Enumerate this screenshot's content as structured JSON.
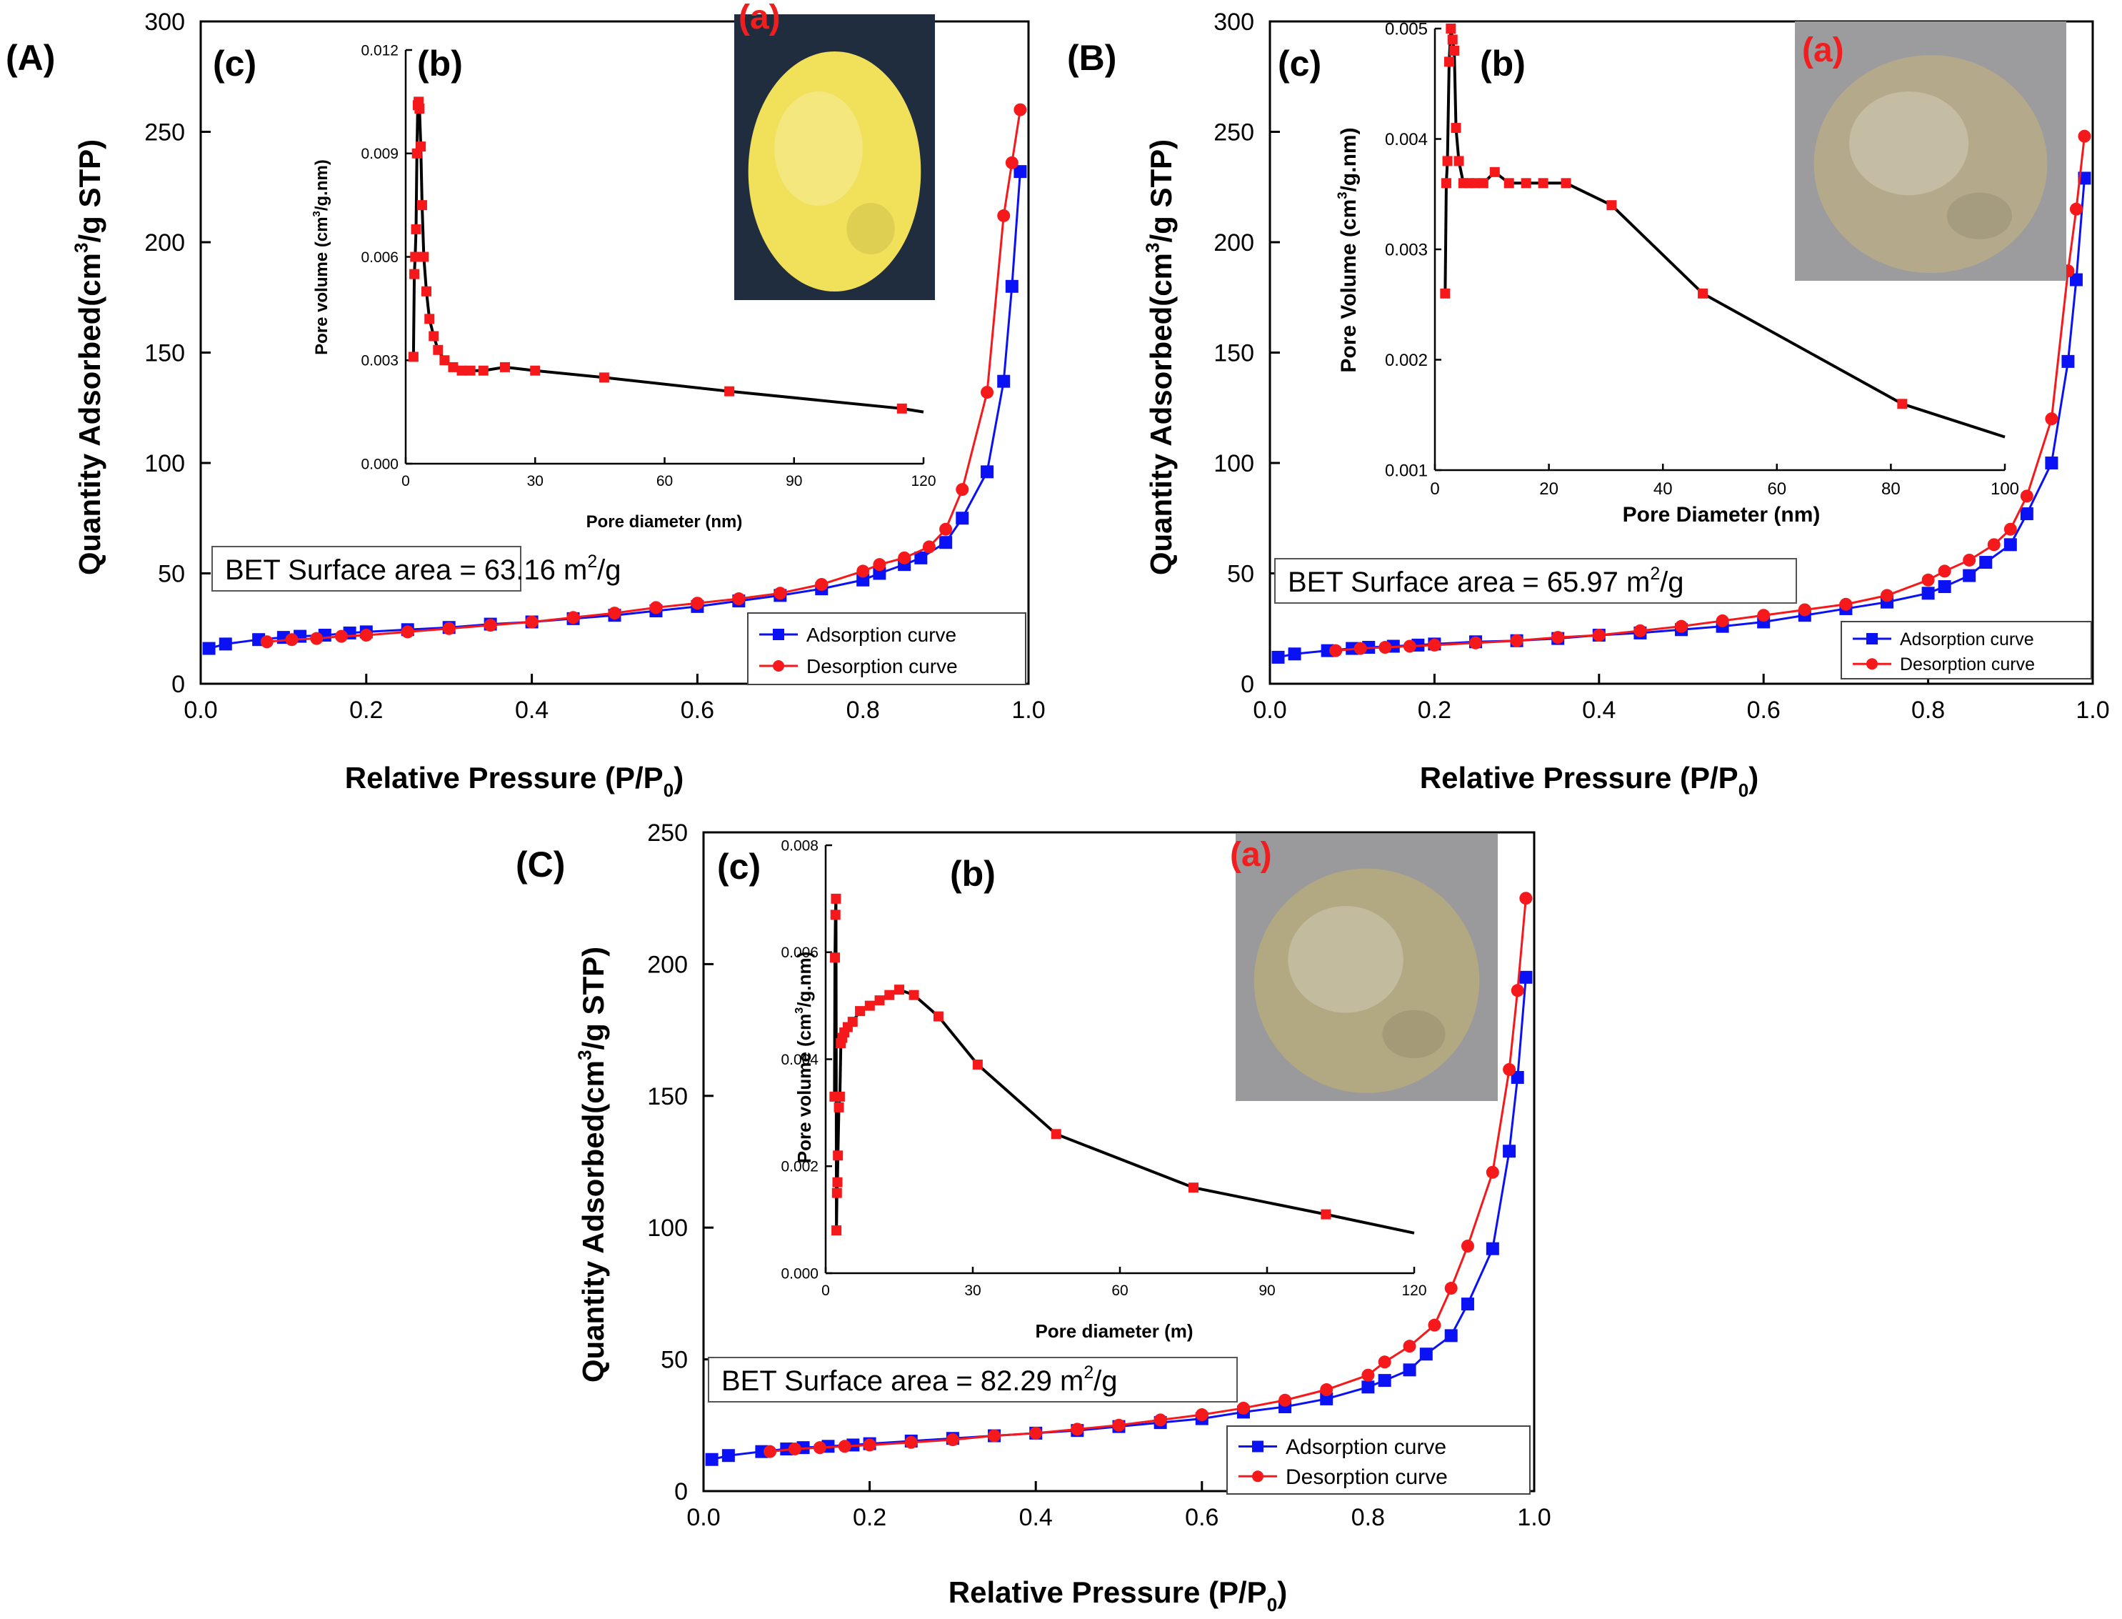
{
  "figure": {
    "panels": [
      {
        "id": "A",
        "tag": "(A)",
        "tag_c": "(c)",
        "tag_b": "(b)",
        "tag_a": "(a)",
        "photo_color": "#F1E05A",
        "photo_bg": "#1F2D3E",
        "photo_desc": "yellow powder"
      },
      {
        "id": "B",
        "tag": "(B)",
        "tag_c": "(c)",
        "tag_b": "(b)",
        "tag_a": "(a)",
        "photo_color": "#B4A98A",
        "photo_bg": "#9C9C9E",
        "photo_desc": "khaki powder"
      },
      {
        "id": "C",
        "tag": "(C)",
        "tag_c": "(c)",
        "tag_b": "(b)",
        "tag_a": "(a)",
        "photo_color": "#B2A882",
        "photo_bg": "#9A9A9C",
        "photo_desc": "khaki powder"
      }
    ]
  },
  "chart_data": [
    {
      "panel": "A",
      "type": "line",
      "xlabel": "Relative Pressure (P/P0)",
      "ylabel": "Quantity Adsorbed(cm3/g STP)",
      "xlim": [
        0,
        1.0
      ],
      "ylim": [
        0,
        300
      ],
      "xticks": [
        "0.0",
        "0.2",
        "0.4",
        "0.6",
        "0.8",
        "1.0"
      ],
      "yticks": [
        "0",
        "50",
        "100",
        "150",
        "200",
        "250",
        "300"
      ],
      "annotation": {
        "text_pre": "BET Surface area = 63.16 m",
        "sup": "2",
        "text_post": "/g"
      },
      "legend": {
        "position": "bottom-right",
        "entries": [
          "Adsorption curve",
          "Desorption curve"
        ]
      },
      "series": [
        {
          "name": "Adsorption curve",
          "color": "#0B11F5",
          "marker": "square",
          "x": [
            0.01,
            0.03,
            0.07,
            0.1,
            0.12,
            0.15,
            0.18,
            0.2,
            0.25,
            0.3,
            0.35,
            0.4,
            0.45,
            0.5,
            0.55,
            0.6,
            0.65,
            0.7,
            0.75,
            0.8,
            0.82,
            0.85,
            0.87,
            0.9,
            0.92,
            0.95,
            0.97,
            0.98,
            0.99
          ],
          "y": [
            16,
            18,
            20,
            21,
            21.5,
            22,
            23,
            23.5,
            24.5,
            25.5,
            27,
            28,
            29.5,
            31,
            33,
            35,
            37.5,
            40,
            43,
            47,
            50,
            54,
            57,
            64,
            75,
            96,
            137,
            180,
            232
          ]
        },
        {
          "name": "Desorption curve",
          "color": "#F5191B",
          "marker": "circle",
          "x": [
            0.08,
            0.11,
            0.14,
            0.17,
            0.2,
            0.25,
            0.3,
            0.35,
            0.4,
            0.45,
            0.5,
            0.55,
            0.6,
            0.65,
            0.7,
            0.75,
            0.8,
            0.82,
            0.85,
            0.88,
            0.9,
            0.92,
            0.95,
            0.97,
            0.98,
            0.99
          ],
          "y": [
            19,
            20,
            20.5,
            21.5,
            22,
            23.5,
            25,
            26.5,
            28,
            30,
            32,
            34.5,
            36.5,
            38.5,
            41,
            45,
            51,
            54,
            57,
            62,
            70,
            88,
            132,
            212,
            236,
            260
          ]
        }
      ],
      "inset": {
        "type": "line",
        "xlabel": "Pore diameter (nm)",
        "ylabel": "Pore volume (cm3/g.nm)",
        "xlim": [
          0,
          120
        ],
        "ylim": [
          0,
          0.012
        ],
        "xticks": [
          "0",
          "30",
          "60",
          "90",
          "120"
        ],
        "yticks": [
          "0.000",
          "0.003",
          "0.006",
          "0.009",
          "0.012"
        ],
        "series": [
          {
            "name": "Pore size distribution",
            "color": "#000000",
            "marker_color": "#F5191B",
            "marker": "square",
            "x": [
              1.8,
              2.0,
              2.2,
              2.4,
              2.6,
              2.8,
              3.0,
              3.2,
              3.5,
              3.8,
              4.2,
              4.8,
              5.5,
              6.5,
              7.5,
              9,
              11,
              13,
              15,
              18,
              23,
              30,
              46,
              75,
              115,
              120
            ],
            "y": [
              0.0031,
              0.0055,
              0.006,
              0.0068,
              0.009,
              0.0104,
              0.0105,
              0.0103,
              0.0092,
              0.0075,
              0.006,
              0.005,
              0.0042,
              0.0037,
              0.0033,
              0.003,
              0.0028,
              0.0027,
              0.0027,
              0.0027,
              0.0028,
              0.0027,
              0.0025,
              0.0021,
              0.0016,
              0.0015
            ]
          }
        ]
      }
    },
    {
      "panel": "B",
      "type": "line",
      "xlabel": "Relative Pressure (P/P0)",
      "ylabel": "Quantity Adsorbed(cm3/g STP)",
      "xlim": [
        0,
        1.0
      ],
      "ylim": [
        0,
        300
      ],
      "xticks": [
        "0.0",
        "0.2",
        "0.4",
        "0.6",
        "0.8",
        "1.0"
      ],
      "yticks": [
        "0",
        "50",
        "100",
        "150",
        "200",
        "250",
        "300"
      ],
      "annotation": {
        "text_pre": "BET Surface area = 65.97 m",
        "sup": "2",
        "text_post": "/g"
      },
      "legend": {
        "position": "bottom-right",
        "entries": [
          "Adsorption curve",
          "Desorption curve"
        ]
      },
      "series": [
        {
          "name": "Adsorption curve",
          "color": "#0B11F5",
          "marker": "square",
          "x": [
            0.01,
            0.03,
            0.07,
            0.1,
            0.12,
            0.15,
            0.18,
            0.2,
            0.25,
            0.3,
            0.35,
            0.4,
            0.45,
            0.5,
            0.55,
            0.6,
            0.65,
            0.7,
            0.75,
            0.8,
            0.82,
            0.85,
            0.87,
            0.9,
            0.92,
            0.95,
            0.97,
            0.98,
            0.99
          ],
          "y": [
            12,
            13.5,
            15,
            16,
            16.5,
            17,
            17.5,
            18,
            19,
            19.5,
            20.5,
            22,
            23,
            24.5,
            26,
            28,
            31,
            34,
            37,
            41,
            44,
            49,
            55,
            63,
            77,
            100,
            146,
            183,
            229
          ]
        },
        {
          "name": "Desorption curve",
          "color": "#F5191B",
          "marker": "circle",
          "x": [
            0.08,
            0.11,
            0.14,
            0.17,
            0.2,
            0.25,
            0.3,
            0.35,
            0.4,
            0.45,
            0.5,
            0.55,
            0.6,
            0.65,
            0.7,
            0.75,
            0.8,
            0.82,
            0.85,
            0.88,
            0.9,
            0.92,
            0.95,
            0.97,
            0.98,
            0.99
          ],
          "y": [
            15,
            16,
            16.5,
            17,
            17.5,
            18.5,
            19.5,
            21,
            22,
            24,
            26,
            28.5,
            31,
            33.5,
            36,
            40,
            47,
            51,
            56,
            63,
            70,
            85,
            120,
            187,
            215,
            248
          ]
        }
      ],
      "inset": {
        "type": "line",
        "xlabel": "Pore Diameter (nm)",
        "ylabel": "Pore Volume (cm3/g.nm)",
        "xlim": [
          0,
          100
        ],
        "ylim": [
          0.001,
          0.005
        ],
        "xticks": [
          "0",
          "20",
          "40",
          "60",
          "80",
          "100"
        ],
        "yticks": [
          "0.001",
          "0.002",
          "0.003",
          "0.004",
          "0.005"
        ],
        "series": [
          {
            "name": "Pore size distribution",
            "color": "#000000",
            "marker_color": "#F5191B",
            "marker": "square",
            "x": [
              1.8,
              2.0,
              2.2,
              2.5,
              2.8,
              3.1,
              3.4,
              3.7,
              4.2,
              5,
              6,
              7,
              8.5,
              10.5,
              13,
              16,
              19,
              23,
              31,
              47,
              82,
              100
            ],
            "y": [
              0.0026,
              0.0036,
              0.0038,
              0.0047,
              0.005,
              0.0049,
              0.0048,
              0.0041,
              0.0038,
              0.0036,
              0.0036,
              0.0036,
              0.0036,
              0.0037,
              0.0036,
              0.0036,
              0.0036,
              0.0036,
              0.0034,
              0.0026,
              0.0016,
              0.0013
            ]
          }
        ]
      }
    },
    {
      "panel": "C",
      "type": "line",
      "xlabel": "Relative Pressure (P/P0)",
      "ylabel": "Quantity Adsorbed(cm3/g STP)",
      "xlim": [
        0,
        1.0
      ],
      "ylim": [
        0,
        250
      ],
      "xticks": [
        "0.0",
        "0.2",
        "0.4",
        "0.6",
        "0.8",
        "1.0"
      ],
      "yticks": [
        "0",
        "50",
        "100",
        "150",
        "200",
        "250"
      ],
      "annotation": {
        "text_pre": "BET Surface area = 82.29 m",
        "sup": "2",
        "text_post": "/g"
      },
      "legend": {
        "position": "bottom-right",
        "entries": [
          "Adsorption curve",
          "Desorption curve"
        ]
      },
      "series": [
        {
          "name": "Adsorption curve",
          "color": "#0B11F5",
          "marker": "square",
          "x": [
            0.01,
            0.03,
            0.07,
            0.1,
            0.12,
            0.15,
            0.18,
            0.2,
            0.25,
            0.3,
            0.35,
            0.4,
            0.45,
            0.5,
            0.55,
            0.6,
            0.65,
            0.7,
            0.75,
            0.8,
            0.82,
            0.85,
            0.87,
            0.9,
            0.92,
            0.95,
            0.97,
            0.98,
            0.99
          ],
          "y": [
            12,
            13.5,
            15,
            16,
            16.5,
            17,
            17.5,
            18,
            19,
            20,
            21,
            22,
            23,
            24.5,
            26,
            27.5,
            30,
            32,
            35,
            39.5,
            42,
            46,
            52,
            59,
            71,
            92,
            129,
            157,
            195
          ]
        },
        {
          "name": "Desorption curve",
          "color": "#F5191B",
          "marker": "circle",
          "x": [
            0.08,
            0.11,
            0.14,
            0.17,
            0.2,
            0.25,
            0.3,
            0.35,
            0.4,
            0.45,
            0.5,
            0.55,
            0.6,
            0.65,
            0.7,
            0.75,
            0.8,
            0.82,
            0.85,
            0.88,
            0.9,
            0.92,
            0.95,
            0.97,
            0.98,
            0.99
          ],
          "y": [
            15,
            16,
            16.5,
            17,
            17.5,
            18.5,
            19.5,
            21,
            22,
            23.5,
            25,
            27,
            29,
            31.5,
            34.5,
            38.5,
            44,
            49,
            55,
            63,
            77,
            93,
            121,
            160,
            190,
            225
          ]
        }
      ],
      "inset": {
        "type": "line",
        "xlabel": "Pore diameter (m)",
        "ylabel": "Pore volume (cm3/g.nm)",
        "xlim": [
          0,
          120
        ],
        "ylim": [
          0,
          0.008
        ],
        "xticks": [
          "0",
          "30",
          "60",
          "90",
          "120"
        ],
        "yticks": [
          "0.000",
          "0.002",
          "0.004",
          "0.006",
          "0.008"
        ],
        "series": [
          {
            "name": "Pore size distribution",
            "color": "#000000",
            "marker_color": "#F5191B",
            "marker": "square",
            "x": [
              1.8,
              1.9,
              2.0,
              2.1,
              2.2,
              2.3,
              2.4,
              2.5,
              2.7,
              2.9,
              3.1,
              3.4,
              3.8,
              4.5,
              5.5,
              7,
              9,
              11,
              13,
              15,
              18,
              23,
              31,
              47,
              75,
              102,
              120
            ],
            "y": [
              0.0033,
              0.0059,
              0.0067,
              0.007,
              0.0008,
              0.0015,
              0.0017,
              0.0022,
              0.0031,
              0.0033,
              0.0043,
              0.0044,
              0.0045,
              0.0046,
              0.0047,
              0.0049,
              0.005,
              0.0051,
              0.0052,
              0.0053,
              0.0052,
              0.0048,
              0.0039,
              0.0026,
              0.0016,
              0.0011,
              0.00075
            ]
          }
        ]
      }
    }
  ]
}
